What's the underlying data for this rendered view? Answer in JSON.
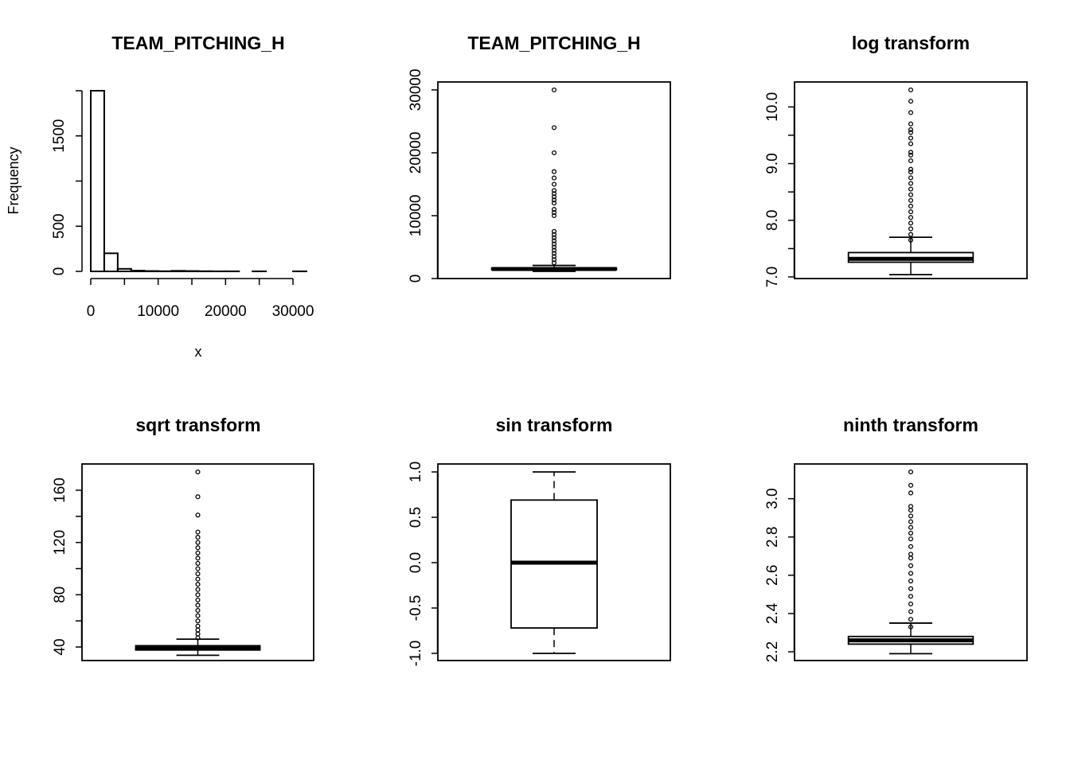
{
  "chart_data": [
    {
      "type": "histogram",
      "title": "TEAM_PITCHING_H",
      "xlabel": "x",
      "ylabel": "Frequency",
      "bin_edges": [
        0,
        2000,
        4000,
        6000,
        8000,
        10000,
        12000,
        14000,
        16000,
        18000,
        20000,
        22000,
        24000,
        26000,
        28000,
        30000,
        32000
      ],
      "counts": [
        2000,
        200,
        28,
        8,
        4,
        2,
        6,
        4,
        2,
        1,
        1,
        0,
        1,
        0,
        0,
        1
      ],
      "xlim": [
        0,
        32000
      ],
      "ylim": [
        0,
        2000
      ],
      "x_ticks": [
        0,
        10000,
        20000,
        30000
      ],
      "y_ticks": [
        0,
        500,
        1500
      ],
      "y_tick_labels": [
        "0",
        "500",
        "1500"
      ]
    },
    {
      "type": "boxplot",
      "title": "TEAM_PITCHING_H",
      "ylim": [
        0,
        30000
      ],
      "y_ticks": [
        0,
        10000,
        20000,
        30000
      ],
      "y_tick_labels": [
        "0",
        "10000",
        "20000",
        "30000"
      ],
      "whisker_low": 1137,
      "q1": 1419,
      "median": 1518,
      "q3": 1682,
      "whisker_high": 2079,
      "outliers": [
        7500,
        7000,
        6500,
        6000,
        5500,
        5000,
        4500,
        4000,
        3500,
        3000,
        2500,
        10000,
        10500,
        11000,
        12000,
        12500,
        13000,
        13500,
        14000,
        15000,
        16000,
        17000,
        20000,
        24000,
        30000
      ]
    },
    {
      "type": "boxplot",
      "title": "log transform",
      "ylim": [
        7.0,
        10.3
      ],
      "y_ticks": [
        7.0,
        7.5,
        8.0,
        8.5,
        9.0,
        9.5,
        10.0
      ],
      "y_tick_labels": [
        "7.0",
        "",
        "8.0",
        "",
        "9.0",
        "",
        "10.0"
      ],
      "whisker_low": 7.04,
      "q1": 7.26,
      "median": 7.32,
      "q3": 7.43,
      "whisker_high": 7.7,
      "outliers": [
        7.65,
        7.75,
        7.85,
        7.95,
        8.05,
        8.15,
        8.25,
        8.35,
        8.45,
        8.55,
        8.65,
        8.75,
        8.85,
        8.9,
        9.05,
        9.15,
        9.2,
        9.35,
        9.45,
        9.55,
        9.6,
        9.7,
        9.9,
        10.1,
        10.3
      ]
    },
    {
      "type": "boxplot",
      "title": "sqrt transform",
      "ylim": [
        34,
        174
      ],
      "y_ticks": [
        40,
        60,
        80,
        100,
        120,
        140,
        160
      ],
      "y_tick_labels": [
        "40",
        "",
        "80",
        "",
        "120",
        "",
        "160"
      ],
      "whisker_low": 33.7,
      "q1": 37.7,
      "median": 39,
      "q3": 41,
      "whisker_high": 46,
      "outliers": [
        47,
        50,
        53,
        56,
        60,
        64,
        68,
        72,
        76,
        80,
        84,
        88,
        92,
        96,
        100,
        104,
        108,
        112,
        116,
        120,
        124,
        128,
        141,
        155,
        174
      ]
    },
    {
      "type": "boxplot",
      "title": "sin transform",
      "ylim": [
        -1.0,
        1.0
      ],
      "y_ticks": [
        -1.0,
        -0.5,
        0.0,
        0.5,
        1.0
      ],
      "y_tick_labels": [
        "-1.0",
        "-0.5",
        "0.0",
        "0.5",
        "1.0"
      ],
      "whisker_low": -1.0,
      "q1": -0.72,
      "median": 0.0,
      "q3": 0.69,
      "whisker_high": 1.0,
      "outliers": []
    },
    {
      "type": "boxplot",
      "title": "ninth transform",
      "ylim": [
        2.19,
        3.14
      ],
      "y_ticks": [
        2.2,
        2.4,
        2.6,
        2.8,
        3.0
      ],
      "y_tick_labels": [
        "2.2",
        "2.4",
        "2.6",
        "2.8",
        "3.0"
      ],
      "whisker_low": 2.19,
      "q1": 2.24,
      "median": 2.26,
      "q3": 2.28,
      "whisker_high": 2.35,
      "outliers": [
        2.33,
        2.37,
        2.41,
        2.45,
        2.49,
        2.53,
        2.57,
        2.61,
        2.65,
        2.69,
        2.71,
        2.75,
        2.79,
        2.82,
        2.85,
        2.88,
        2.91,
        2.94,
        2.96,
        3.03,
        3.07,
        3.14
      ]
    }
  ]
}
